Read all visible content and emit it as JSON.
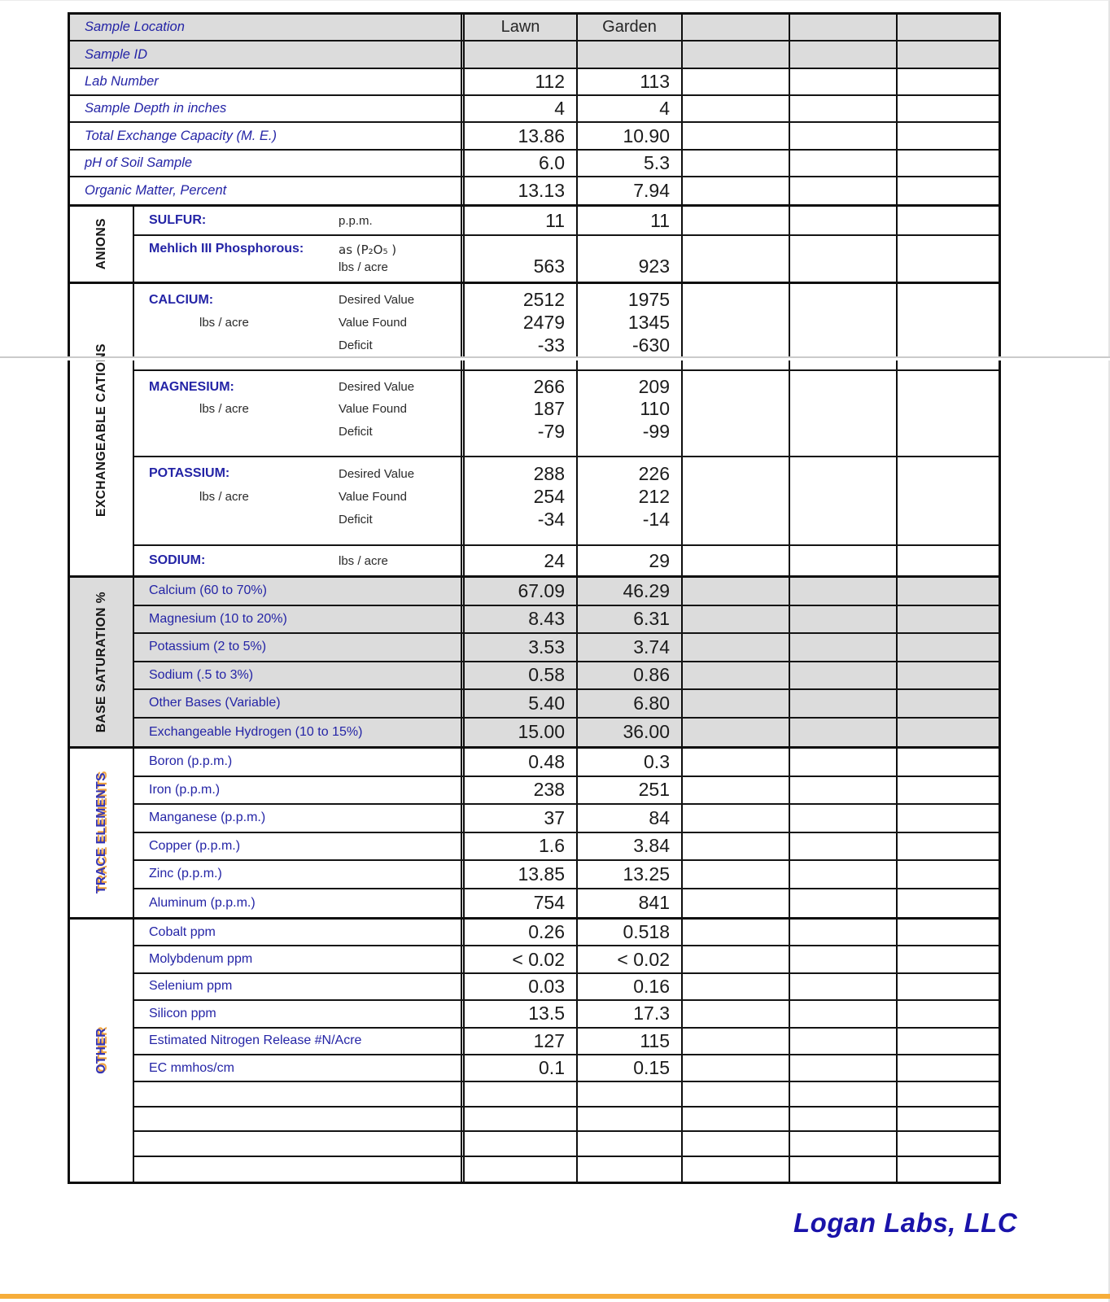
{
  "header": {
    "label": "Sample Location",
    "columns": [
      "Lawn",
      "Garden",
      "",
      "",
      ""
    ]
  },
  "info_rows": [
    {
      "label": "Sample ID",
      "lawn": "",
      "garden": ""
    },
    {
      "label": "Lab Number",
      "lawn": "112",
      "garden": "113"
    },
    {
      "label": "Sample Depth in inches",
      "lawn": "4",
      "garden": "4"
    },
    {
      "label": "Total Exchange Capacity (M. E.)",
      "lawn": "13.86",
      "garden": "10.90"
    },
    {
      "label": "pH of Soil Sample",
      "lawn": "6.0",
      "garden": "5.3"
    },
    {
      "label": "Organic Matter, Percent",
      "lawn": "13.13",
      "garden": "7.94"
    }
  ],
  "anions": {
    "title": "ANIONS",
    "sulfur": {
      "name": "SULFUR:",
      "unit": "p.p.m.",
      "lawn": "11",
      "garden": "11"
    },
    "phosphorous": {
      "name": "Mehlich III Phosphorous:",
      "unit1": "as (P₂O₅ )",
      "unit2": "lbs / acre",
      "lawn": "563",
      "garden": "923"
    }
  },
  "cations": {
    "title": "EXCHANGEABLE CATIONS",
    "measures": [
      "Desired Value",
      "Value Found",
      "Deficit"
    ],
    "minerals": [
      {
        "name": "CALCIUM:",
        "sub": "lbs / acre",
        "lawn": [
          "2512",
          "2479",
          "-33"
        ],
        "garden": [
          "1975",
          "1345",
          "-630"
        ]
      },
      {
        "name": "MAGNESIUM:",
        "sub": "lbs / acre",
        "lawn": [
          "266",
          "187",
          "-79"
        ],
        "garden": [
          "209",
          "110",
          "-99"
        ]
      },
      {
        "name": "POTASSIUM:",
        "sub": "lbs / acre",
        "lawn": [
          "288",
          "254",
          "-34"
        ],
        "garden": [
          "226",
          "212",
          "-14"
        ]
      }
    ],
    "sodium": {
      "name": "SODIUM:",
      "unit": "lbs / acre",
      "lawn": "24",
      "garden": "29"
    }
  },
  "base_saturation": {
    "title": "BASE SATURATION %",
    "rows": [
      {
        "label": "Calcium (60 to 70%)",
        "lawn": "67.09",
        "garden": "46.29"
      },
      {
        "label": "Magnesium (10 to 20%)",
        "lawn": "8.43",
        "garden": "6.31"
      },
      {
        "label": "Potassium (2 to 5%)",
        "lawn": "3.53",
        "garden": "3.74"
      },
      {
        "label": "Sodium (.5 to 3%)",
        "lawn": "0.58",
        "garden": "0.86"
      },
      {
        "label": "Other Bases (Variable)",
        "lawn": "5.40",
        "garden": "6.80"
      },
      {
        "label": "Exchangeable Hydrogen (10 to 15%)",
        "lawn": "15.00",
        "garden": "36.00"
      }
    ]
  },
  "trace_elements": {
    "title": "TRACE ELEMENTS",
    "rows": [
      {
        "label": "Boron (p.p.m.)",
        "lawn": "0.48",
        "garden": "0.3"
      },
      {
        "label": "Iron (p.p.m.)",
        "lawn": "238",
        "garden": "251"
      },
      {
        "label": "Manganese (p.p.m.)",
        "lawn": "37",
        "garden": "84"
      },
      {
        "label": "Copper (p.p.m.)",
        "lawn": "1.6",
        "garden": "3.84"
      },
      {
        "label": "Zinc (p.p.m.)",
        "lawn": "13.85",
        "garden": "13.25"
      },
      {
        "label": "Aluminum (p.p.m.)",
        "lawn": "754",
        "garden": "841"
      }
    ]
  },
  "other": {
    "title": "OTHER",
    "rows": [
      {
        "label": "Cobalt  ppm",
        "lawn": "0.26",
        "garden": "0.518"
      },
      {
        "label": "Molybdenum  ppm",
        "lawn": "< 0.02",
        "garden": "< 0.02"
      },
      {
        "label": "Selenium  ppm",
        "lawn": "0.03",
        "garden": "0.16"
      },
      {
        "label": "Silicon    ppm",
        "lawn": "13.5",
        "garden": "17.3"
      },
      {
        "label": "Estimated Nitrogen Release #N/Acre",
        "lawn": "127",
        "garden": "115"
      },
      {
        "label": "EC  mmhos/cm",
        "lawn": "0.1",
        "garden": "0.15"
      }
    ]
  },
  "footer": {
    "logo": "Logan Labs, LLC"
  },
  "colors": {
    "accent_blue": "#2424A6",
    "shade_grey": "#DCDCDC",
    "section_label_blue": "#3535B4",
    "section_label_shadow_orange": "#EFA33F",
    "logo_blue": "#1A13AA",
    "bottom_bar_orange": "#F6AD3A"
  }
}
